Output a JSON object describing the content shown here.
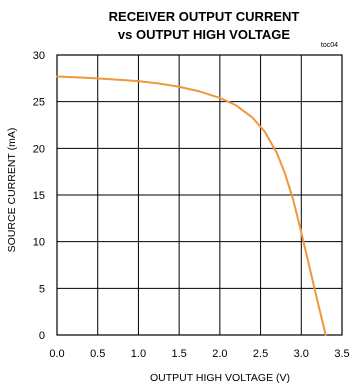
{
  "chart_data": {
    "type": "line",
    "title": "RECEIVER OUTPUT CURRENT",
    "subtitle": "vs OUTPUT HIGH VOLTAGE",
    "tag": "toc04",
    "xlabel": "OUTPUT HIGH VOLTAGE (V)",
    "ylabel": "SOURCE CURRENT (mA)",
    "xlim": [
      0,
      3.5
    ],
    "ylim": [
      0,
      30
    ],
    "xticks": [
      "0.0",
      "0.5",
      "1.0",
      "1.5",
      "2.0",
      "2.5",
      "3.0",
      "3.5"
    ],
    "yticks": [
      "0",
      "5",
      "10",
      "15",
      "20",
      "25",
      "30"
    ],
    "grid": true,
    "series": [
      {
        "color": "#f0963c",
        "x": [
          0.0,
          0.25,
          0.5,
          0.75,
          1.0,
          1.25,
          1.5,
          1.75,
          2.0,
          2.2,
          2.4,
          2.55,
          2.7,
          2.8,
          2.9,
          3.0,
          3.1,
          3.2,
          3.3
        ],
        "y": [
          27.7,
          27.6,
          27.5,
          27.35,
          27.2,
          26.95,
          26.6,
          26.1,
          25.4,
          24.6,
          23.3,
          21.8,
          19.5,
          17.3,
          14.5,
          11.0,
          7.3,
          3.6,
          0.0
        ]
      }
    ]
  }
}
